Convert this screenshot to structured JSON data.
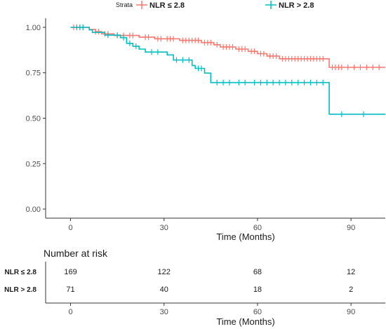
{
  "legend": {
    "title": "Strata",
    "items": [
      {
        "label": "NLR ≤  2.8",
        "color": "#F8766D"
      },
      {
        "label": "NLR > 2.8",
        "color": "#00BFC4"
      }
    ]
  },
  "chart_data": {
    "type": "line",
    "subtype": "kaplan-meier step curves with censor marks",
    "xlabel": "Time (Months)",
    "ylabel": "",
    "xlim": [
      -8,
      101
    ],
    "ylim": [
      -0.05,
      1.05
    ],
    "x_ticks": [
      0,
      30,
      60,
      90
    ],
    "y_ticks": [
      0.0,
      0.25,
      0.5,
      0.75,
      1.0
    ],
    "y_tick_labels": [
      "0.00",
      "0.25",
      "0.50",
      "0.75",
      "1.00"
    ],
    "grid": false,
    "legend_position": "top",
    "series": [
      {
        "name": "NLR ≤  2.8",
        "color": "#F8766D",
        "steps": [
          [
            0,
            1.0
          ],
          [
            6,
            0.988
          ],
          [
            8,
            0.976
          ],
          [
            10,
            0.964
          ],
          [
            14,
            0.955
          ],
          [
            22,
            0.946
          ],
          [
            27,
            0.937
          ],
          [
            35,
            0.928
          ],
          [
            42,
            0.916
          ],
          [
            46,
            0.904
          ],
          [
            48,
            0.892
          ],
          [
            53,
            0.88
          ],
          [
            57,
            0.868
          ],
          [
            60,
            0.855
          ],
          [
            63,
            0.842
          ],
          [
            67,
            0.827
          ],
          [
            83,
            0.78
          ],
          [
            101,
            0.78
          ]
        ],
        "censor_times": [
          1,
          2,
          3,
          4,
          8,
          9,
          11,
          12,
          15,
          17,
          19,
          20,
          24,
          25,
          28,
          29,
          31,
          32,
          33,
          36,
          37,
          38,
          39,
          40,
          41,
          43,
          44,
          45,
          47,
          49,
          50,
          51,
          52,
          54,
          55,
          56,
          58,
          59,
          61,
          62,
          64,
          65,
          66,
          68,
          69,
          70,
          71,
          72,
          73,
          74,
          75,
          76,
          77,
          78,
          79,
          80,
          81,
          84,
          85,
          86,
          87,
          89,
          91,
          93,
          95,
          97,
          99
        ]
      },
      {
        "name": "NLR > 2.8",
        "color": "#00BFC4",
        "steps": [
          [
            0,
            1.0
          ],
          [
            6,
            0.986
          ],
          [
            7,
            0.972
          ],
          [
            11,
            0.957
          ],
          [
            16,
            0.943
          ],
          [
            18,
            0.912
          ],
          [
            20,
            0.896
          ],
          [
            22,
            0.88
          ],
          [
            24,
            0.864
          ],
          [
            31,
            0.848
          ],
          [
            33,
            0.82
          ],
          [
            39,
            0.79
          ],
          [
            40,
            0.774
          ],
          [
            43,
            0.748
          ],
          [
            45,
            0.696
          ],
          [
            82,
            0.696
          ],
          [
            83,
            0.522
          ],
          [
            101,
            0.522
          ]
        ],
        "censor_times": [
          2,
          3,
          4,
          12,
          15,
          17,
          19,
          21,
          26,
          28,
          34,
          36,
          38,
          41,
          42,
          47,
          49,
          51,
          54,
          56,
          59,
          61,
          63,
          65,
          67,
          69,
          71,
          73,
          75,
          77,
          79,
          81,
          87,
          94
        ]
      }
    ]
  },
  "risk_table": {
    "title": "Number at risk",
    "xlabel": "Time (Months)",
    "x_ticks": [
      0,
      30,
      60,
      90
    ],
    "rows": [
      {
        "label": "NLR ≤  2.8",
        "counts": [
          "169",
          "122",
          "68",
          "12"
        ]
      },
      {
        "label": "NLR > 2.8",
        "counts": [
          "71",
          "40",
          "18",
          "2"
        ]
      }
    ]
  }
}
